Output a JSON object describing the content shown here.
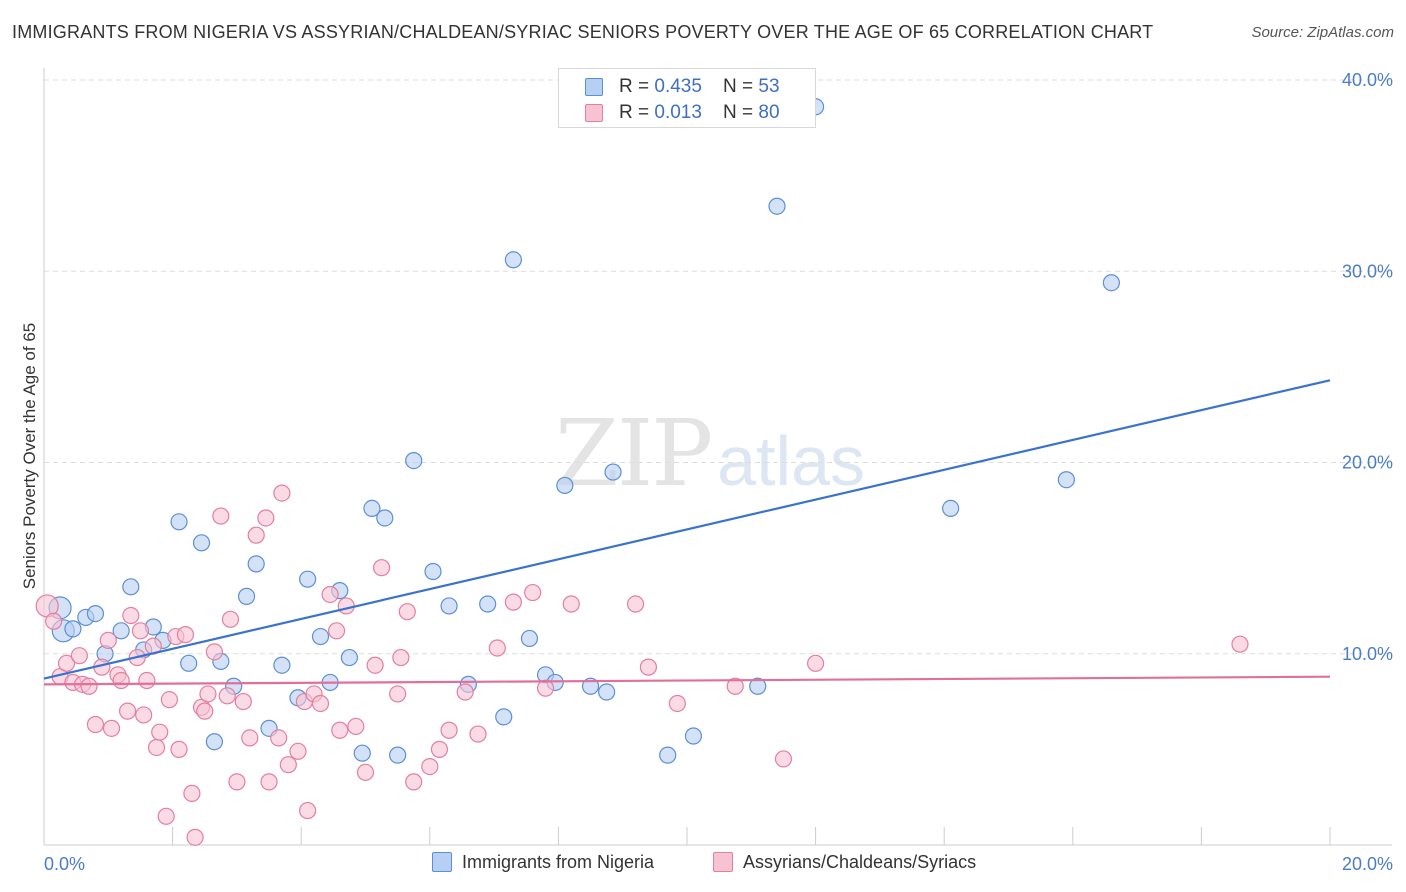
{
  "header": {
    "title": "IMMIGRANTS FROM NIGERIA VS ASSYRIAN/CHALDEAN/SYRIAC SENIORS POVERTY OVER THE AGE OF 65 CORRELATION CHART",
    "source": "Source: ZipAtlas.com"
  },
  "watermark": {
    "zip": "ZIP",
    "atlas": "atlas"
  },
  "colors": {
    "blue_fill": "#b7cff2",
    "blue_stroke": "#5c8fd6",
    "blue_line": "#3a72cf",
    "pink_fill": "#f7c3d3",
    "pink_stroke": "#e47f9e",
    "pink_line": "#e0709a",
    "grid": "#dddddd",
    "tick_text": "#4a7cc9"
  },
  "legend": {
    "rows": [
      {
        "r_label": "R = ",
        "r_value": "0.435",
        "n_label": "N = ",
        "n_value": "53"
      },
      {
        "r_label": "R = ",
        "r_value": "0.013",
        "n_label": "N = ",
        "n_value": "80"
      }
    ]
  },
  "chart_data": {
    "type": "scatter",
    "title": "IMMIGRANTS FROM NIGERIA VS ASSYRIAN/CHALDEAN/SYRIAC SENIORS POVERTY OVER THE AGE OF 65 CORRELATION CHART",
    "xlabel": "",
    "ylabel": "Seniors Poverty Over the Age of 65",
    "xlim": [
      0,
      20
    ],
    "ylim": [
      0,
      40
    ],
    "x_tick_labels": [
      "0.0%",
      "20.0%"
    ],
    "y_ticks": [
      10,
      20,
      30,
      40
    ],
    "y_tick_labels": [
      "10.0%",
      "20.0%",
      "30.0%",
      "40.0%"
    ],
    "legend_position": "top-center",
    "series": [
      {
        "name": "Immigrants from Nigeria",
        "color": "blue",
        "trend": {
          "x0": 0,
          "y0": 8.7,
          "x1": 20,
          "y1": 24.3
        },
        "points": [
          [
            0.25,
            12.4
          ],
          [
            0.3,
            11.2
          ],
          [
            0.45,
            11.3
          ],
          [
            0.65,
            11.9
          ],
          [
            0.8,
            12.1
          ],
          [
            0.95,
            10.0
          ],
          [
            1.2,
            11.2
          ],
          [
            1.35,
            13.5
          ],
          [
            1.55,
            10.2
          ],
          [
            1.7,
            11.4
          ],
          [
            1.85,
            10.7
          ],
          [
            2.1,
            16.9
          ],
          [
            2.25,
            9.5
          ],
          [
            2.45,
            15.8
          ],
          [
            2.65,
            5.4
          ],
          [
            2.75,
            9.6
          ],
          [
            2.95,
            8.3
          ],
          [
            3.15,
            13.0
          ],
          [
            3.3,
            14.7
          ],
          [
            3.5,
            6.1
          ],
          [
            3.7,
            9.4
          ],
          [
            3.95,
            7.7
          ],
          [
            4.1,
            13.9
          ],
          [
            4.3,
            10.9
          ],
          [
            4.45,
            8.5
          ],
          [
            4.6,
            13.3
          ],
          [
            4.75,
            9.8
          ],
          [
            4.95,
            4.8
          ],
          [
            5.1,
            17.6
          ],
          [
            5.3,
            17.1
          ],
          [
            5.5,
            4.7
          ],
          [
            5.75,
            20.1
          ],
          [
            6.05,
            14.3
          ],
          [
            6.3,
            12.5
          ],
          [
            6.6,
            8.4
          ],
          [
            6.9,
            12.6
          ],
          [
            7.15,
            6.7
          ],
          [
            7.3,
            30.6
          ],
          [
            7.55,
            10.8
          ],
          [
            7.8,
            8.9
          ],
          [
            7.95,
            8.5
          ],
          [
            8.1,
            18.8
          ],
          [
            8.5,
            8.3
          ],
          [
            8.75,
            8.0
          ],
          [
            8.85,
            19.5
          ],
          [
            9.7,
            4.7
          ],
          [
            10.1,
            5.7
          ],
          [
            11.1,
            8.3
          ],
          [
            11.4,
            33.4
          ],
          [
            12.0,
            38.6
          ],
          [
            14.1,
            17.6
          ],
          [
            15.9,
            19.1
          ],
          [
            16.6,
            29.4
          ]
        ]
      },
      {
        "name": "Assyrians/Chaldeans/Syriacs",
        "color": "pink",
        "trend": {
          "x0": 0,
          "y0": 8.4,
          "x1": 20,
          "y1": 8.8
        },
        "points": [
          [
            0.05,
            12.5
          ],
          [
            0.15,
            11.7
          ],
          [
            0.25,
            8.8
          ],
          [
            0.35,
            9.5
          ],
          [
            0.45,
            8.5
          ],
          [
            0.55,
            9.9
          ],
          [
            0.6,
            8.4
          ],
          [
            0.7,
            8.3
          ],
          [
            0.8,
            6.3
          ],
          [
            0.9,
            9.3
          ],
          [
            1.0,
            10.7
          ],
          [
            1.05,
            6.1
          ],
          [
            1.15,
            8.9
          ],
          [
            1.2,
            8.6
          ],
          [
            1.3,
            7.0
          ],
          [
            1.35,
            12.0
          ],
          [
            1.45,
            9.8
          ],
          [
            1.5,
            11.2
          ],
          [
            1.55,
            6.8
          ],
          [
            1.6,
            8.6
          ],
          [
            1.7,
            10.4
          ],
          [
            1.75,
            5.1
          ],
          [
            1.8,
            5.9
          ],
          [
            1.9,
            1.5
          ],
          [
            1.95,
            7.6
          ],
          [
            2.05,
            10.9
          ],
          [
            2.1,
            5.0
          ],
          [
            2.2,
            11.0
          ],
          [
            2.3,
            2.7
          ],
          [
            2.35,
            0.4
          ],
          [
            2.45,
            7.2
          ],
          [
            2.5,
            7.0
          ],
          [
            2.55,
            7.9
          ],
          [
            2.65,
            10.1
          ],
          [
            2.75,
            17.2
          ],
          [
            2.85,
            7.8
          ],
          [
            2.9,
            11.8
          ],
          [
            3.0,
            3.3
          ],
          [
            3.1,
            7.5
          ],
          [
            3.2,
            5.6
          ],
          [
            3.3,
            16.2
          ],
          [
            3.45,
            17.1
          ],
          [
            3.5,
            3.3
          ],
          [
            3.65,
            5.6
          ],
          [
            3.7,
            18.4
          ],
          [
            3.8,
            4.2
          ],
          [
            3.95,
            4.9
          ],
          [
            4.05,
            7.5
          ],
          [
            4.1,
            1.8
          ],
          [
            4.2,
            7.9
          ],
          [
            4.3,
            7.4
          ],
          [
            4.45,
            13.1
          ],
          [
            4.55,
            11.2
          ],
          [
            4.6,
            6.0
          ],
          [
            4.7,
            12.5
          ],
          [
            4.85,
            6.2
          ],
          [
            5.0,
            3.8
          ],
          [
            5.15,
            9.4
          ],
          [
            5.25,
            14.5
          ],
          [
            5.5,
            7.9
          ],
          [
            5.55,
            9.8
          ],
          [
            5.65,
            12.2
          ],
          [
            5.75,
            3.3
          ],
          [
            6.0,
            4.1
          ],
          [
            6.15,
            5.0
          ],
          [
            6.3,
            6.0
          ],
          [
            6.55,
            8.0
          ],
          [
            6.75,
            5.8
          ],
          [
            7.05,
            10.3
          ],
          [
            7.3,
            12.7
          ],
          [
            7.6,
            13.2
          ],
          [
            7.8,
            8.2
          ],
          [
            8.2,
            12.6
          ],
          [
            9.2,
            12.6
          ],
          [
            9.4,
            9.3
          ],
          [
            9.85,
            7.4
          ],
          [
            10.75,
            8.3
          ],
          [
            11.5,
            4.5
          ],
          [
            12.0,
            9.5
          ],
          [
            18.6,
            10.5
          ]
        ]
      }
    ]
  },
  "bottom_legend": {
    "items": [
      {
        "label": "Immigrants from Nigeria"
      },
      {
        "label": "Assyrians/Chaldeans/Syriacs"
      }
    ]
  }
}
